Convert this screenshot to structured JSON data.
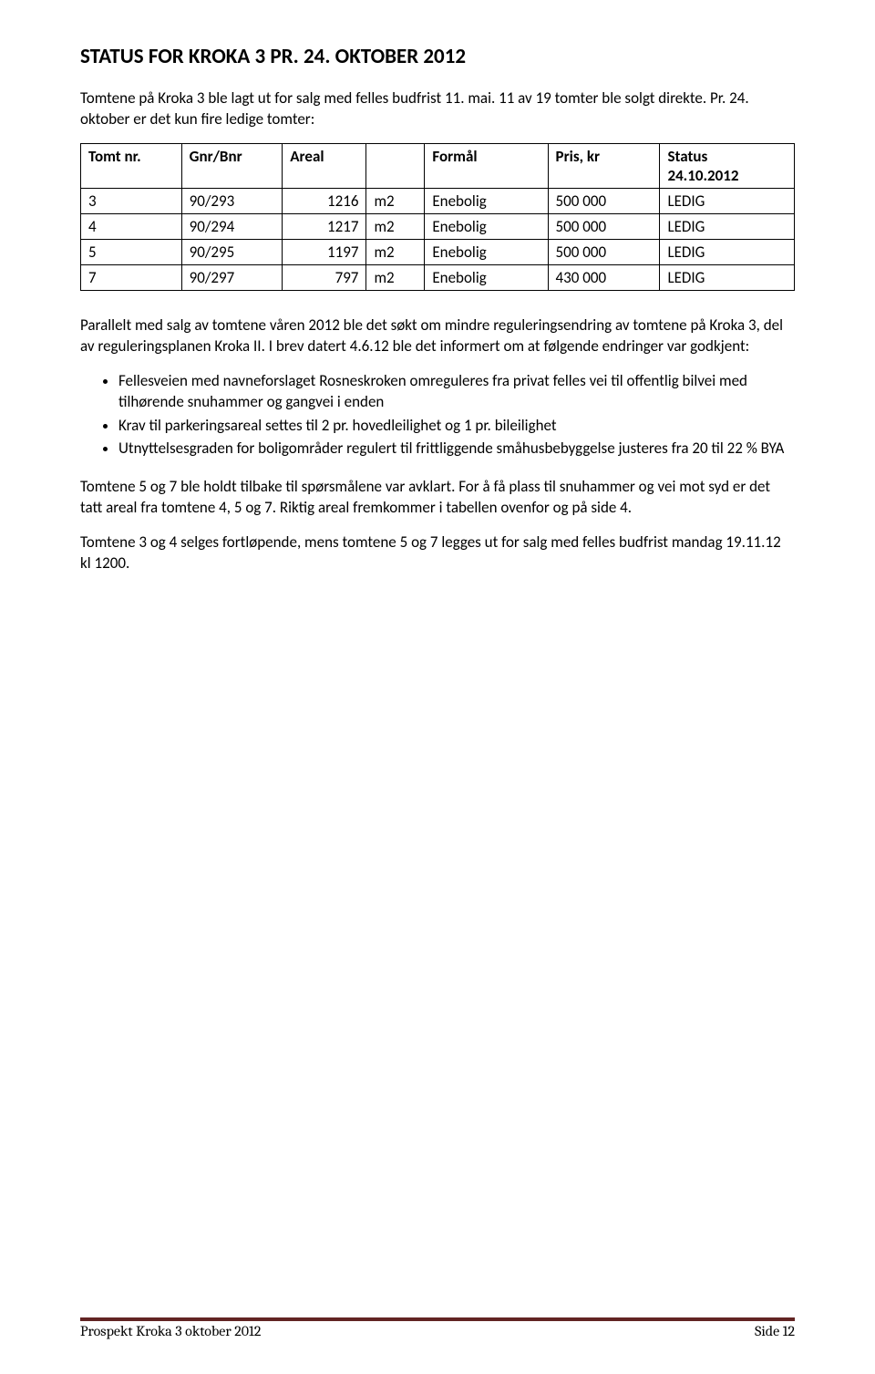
{
  "title": "STATUS FOR KROKA 3 PR. 24. OKTOBER 2012",
  "intro": "Tomtene på Kroka 3 ble lagt ut for salg med felles budfrist 11. mai. 11 av 19 tomter ble solgt direkte. Pr. 24. oktober er det kun fire ledige tomter:",
  "table": {
    "headers": {
      "tomt": "Tomt nr.",
      "gnr": "Gnr/Bnr",
      "areal": "Areal",
      "areal_unit": "",
      "formaal": "Formål",
      "pris": "Pris, kr",
      "status1": "Status",
      "status2": "24.10.2012"
    },
    "rows": [
      {
        "tomt": "3",
        "gnr": "90/293",
        "areal": "1216",
        "unit": "m2",
        "formaal": "Enebolig",
        "pris": "500 000",
        "status": "LEDIG"
      },
      {
        "tomt": "4",
        "gnr": "90/294",
        "areal": "1217",
        "unit": "m2",
        "formaal": "Enebolig",
        "pris": "500 000",
        "status": "LEDIG"
      },
      {
        "tomt": "5",
        "gnr": "90/295",
        "areal": "1197",
        "unit": "m2",
        "formaal": "Enebolig",
        "pris": "500 000",
        "status": "LEDIG"
      },
      {
        "tomt": "7",
        "gnr": "90/297",
        "areal": "797",
        "unit": "m2",
        "formaal": "Enebolig",
        "pris": "430 000",
        "status": "LEDIG"
      }
    ]
  },
  "para2": "Parallelt med salg av tomtene våren 2012 ble det søkt om mindre reguleringsendring av tomtene på Kroka 3, del av reguleringsplanen Kroka II. I brev datert 4.6.12 ble det informert om at følgende endringer var godkjent:",
  "bullets": [
    "Fellesveien med navneforslaget Rosneskroken omreguleres fra privat felles vei til offentlig bilvei med tilhørende snuhammer og gangvei i enden",
    "Krav til parkeringsareal settes til 2 pr. hovedleilighet og 1 pr. bileilighet",
    "Utnyttelsesgraden for boligområder regulert til frittliggende småhusbebyggelse justeres fra 20 til 22 % BYA"
  ],
  "para3": "Tomtene 5 og 7 ble holdt tilbake til spørsmålene var avklart. For å få plass til snuhammer og vei mot syd er det tatt areal fra tomtene 4, 5 og 7. Riktig areal fremkommer i tabellen ovenfor og på side 4.",
  "para4": "Tomtene 3 og 4 selges fortløpende, mens tomtene 5 og 7 legges ut for salg med felles budfrist mandag 19.11.12 kl 1200.",
  "footer": {
    "left": "Prospekt Kroka 3 oktober 2012",
    "right": "Side 12"
  }
}
